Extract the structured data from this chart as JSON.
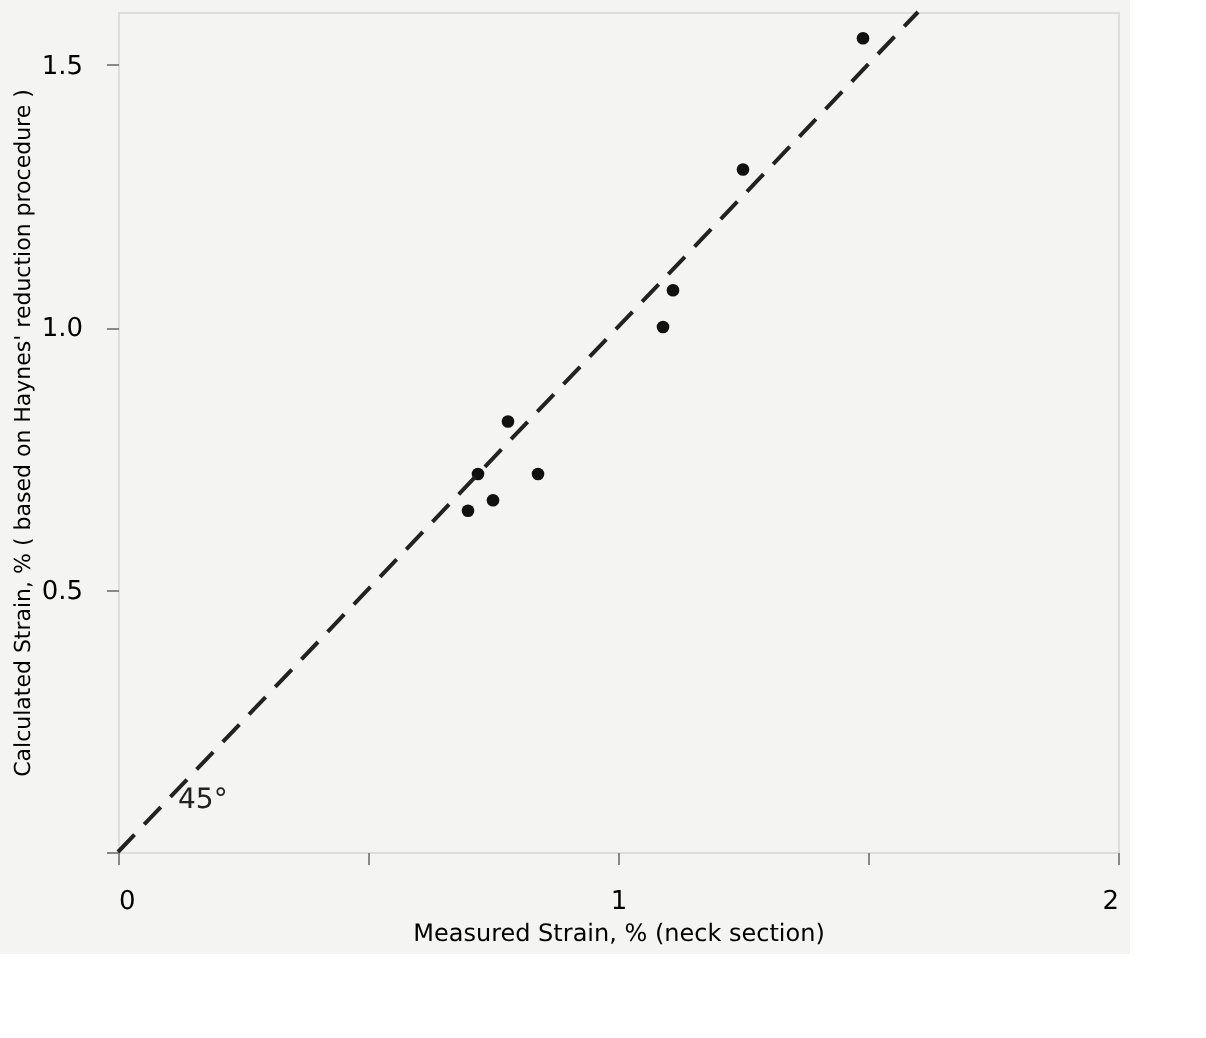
{
  "chart_data": {
    "type": "scatter",
    "xlabel": "Measured Strain, %  (neck section)",
    "ylabel": "Calculated Strain, % ( based on Haynes' reduction procedure )",
    "xlim": [
      0,
      2
    ],
    "ylim": [
      0,
      1.6
    ],
    "xticks": [
      0,
      {
        "value": 0.5,
        "label": null
      },
      1,
      {
        "value": 1.5,
        "label": null
      },
      2
    ],
    "yticks": [
      {
        "value": 0,
        "label": null
      },
      {
        "value": 0.5,
        "label": "0.5"
      },
      {
        "value": 1,
        "label": "1.0"
      },
      {
        "value": 1.5,
        "label": "1.5"
      }
    ],
    "grid": false,
    "marker": "circle",
    "annotations": [
      "45°"
    ],
    "series": [
      {
        "color": "#111111",
        "x": [
          0.7,
          0.72,
          0.75,
          0.78,
          0.84,
          1.09,
          1.11,
          1.25,
          1.49
        ],
        "values": [
          0.65,
          0.72,
          0.67,
          0.82,
          0.72,
          1.0,
          1.07,
          1.3,
          1.55
        ]
      },
      {
        "type": "line",
        "color": "#222222",
        "line_style": "dashed",
        "marker": "none",
        "x": [
          0,
          1.6
        ],
        "values": [
          0,
          1.6
        ]
      }
    ]
  }
}
